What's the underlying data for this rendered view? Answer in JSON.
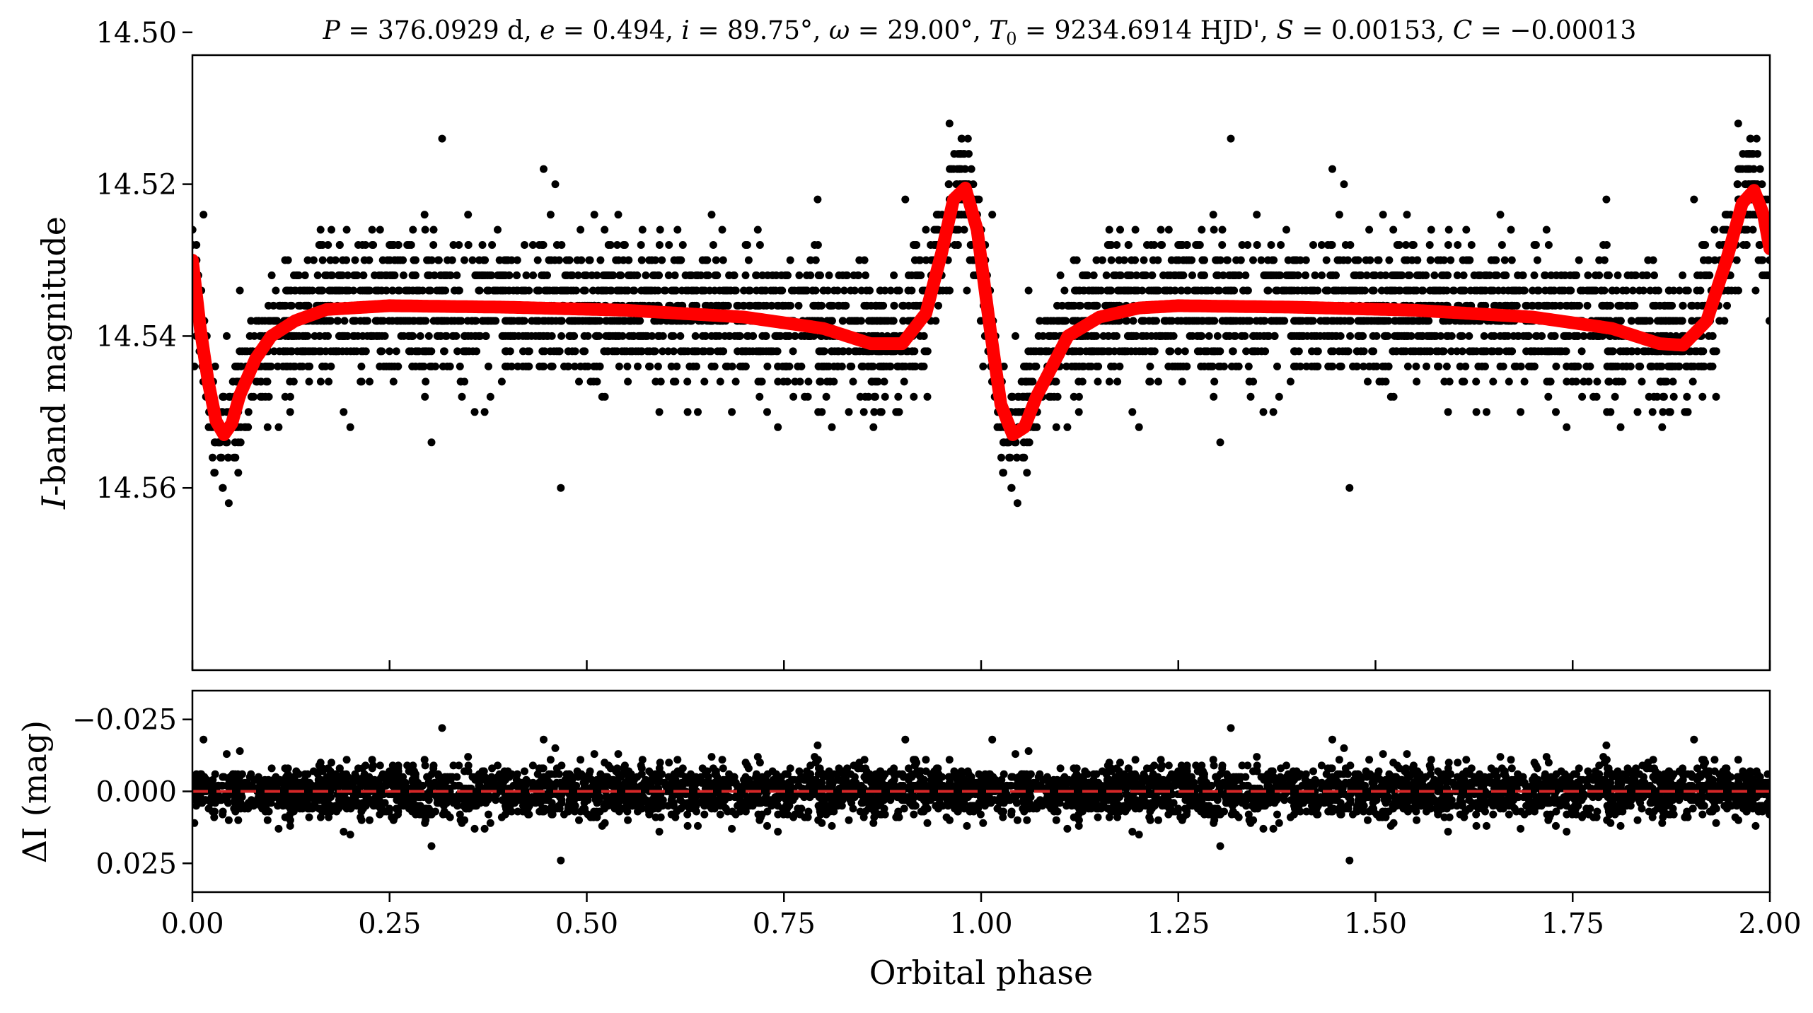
{
  "chart_data": [
    {
      "type": "scatter",
      "panel": "top",
      "title": "P = 376.0929 d, e = 0.494, i = 89.75°, ω = 29.00°, T0 = 9234.6914 HJD', S = 0.00153, C = −0.00013",
      "title_parts": {
        "P_sym": "P",
        "P_val": " = 376.0929 d, ",
        "e_sym": "e",
        "e_val": " = 0.494, ",
        "i_sym": "i",
        "i_val": " = 89.75°, ",
        "w_sym": "ω",
        "w_val": " = 29.00°, ",
        "T_sym": "T",
        "T_sub": "0",
        "T_val": " = 9234.6914 HJD', ",
        "S_sym": "S",
        "S_val": " = 0.00153, ",
        "C_sym": "C",
        "C_val": " = −0.00013"
      },
      "ylabel_italic": "I",
      "ylabel_rest": "-band magnitude",
      "xlim": [
        0.0,
        2.0
      ],
      "ylim": [
        14.584,
        14.503
      ],
      "y_inverted": true,
      "yticks": [
        14.5,
        14.52,
        14.54,
        14.56
      ],
      "ytick_labels": [
        "14.50",
        "14.52",
        "14.54",
        "14.56"
      ],
      "baseline_mag": 14.5385,
      "observations": {
        "color": "#000000",
        "phase_range": [
          0.0,
          2.0
        ],
        "approx_points_per_cycle": 2300
      },
      "model_curve": {
        "color": "#ff0000",
        "points": [
          [
            0.0,
            14.53
          ],
          [
            0.01,
            14.539
          ],
          [
            0.02,
            14.546
          ],
          [
            0.03,
            14.5512
          ],
          [
            0.04,
            14.553
          ],
          [
            0.05,
            14.5515
          ],
          [
            0.06,
            14.5478
          ],
          [
            0.08,
            14.543
          ],
          [
            0.1,
            14.54
          ],
          [
            0.13,
            14.538
          ],
          [
            0.17,
            14.5365
          ],
          [
            0.25,
            14.536
          ],
          [
            0.4,
            14.5362
          ],
          [
            0.55,
            14.5366
          ],
          [
            0.7,
            14.5375
          ],
          [
            0.8,
            14.539
          ],
          [
            0.86,
            14.541
          ],
          [
            0.9,
            14.541
          ],
          [
            0.93,
            14.537
          ],
          [
            0.95,
            14.529
          ],
          [
            0.965,
            14.522
          ],
          [
            0.98,
            14.5205
          ],
          [
            0.995,
            14.526
          ],
          [
            1.01,
            14.538
          ],
          [
            1.025,
            14.549
          ],
          [
            1.04,
            14.553
          ],
          [
            1.055,
            14.552
          ],
          [
            1.07,
            14.548
          ],
          [
            1.09,
            14.544
          ],
          [
            1.11,
            14.54
          ],
          [
            1.15,
            14.5375
          ],
          [
            1.2,
            14.5363
          ],
          [
            1.25,
            14.536
          ],
          [
            1.4,
            14.5362
          ],
          [
            1.55,
            14.5366
          ],
          [
            1.7,
            14.5375
          ],
          [
            1.8,
            14.539
          ],
          [
            1.86,
            14.541
          ],
          [
            1.89,
            14.5412
          ],
          [
            1.92,
            14.538
          ],
          [
            1.945,
            14.53
          ],
          [
            1.965,
            14.5225
          ],
          [
            1.98,
            14.5208
          ],
          [
            1.992,
            14.524
          ],
          [
            2.0,
            14.5285
          ]
        ]
      }
    },
    {
      "type": "scatter",
      "panel": "bottom",
      "xlabel": "Orbital phase",
      "ylabel_sym": "ΔI",
      "ylabel_rest": " (mag)",
      "xlim": [
        0.0,
        2.0
      ],
      "ylim": [
        0.035,
        -0.035
      ],
      "y_inverted": true,
      "xticks": [
        0.0,
        0.25,
        0.5,
        0.75,
        1.0,
        1.25,
        1.5,
        1.75,
        2.0
      ],
      "xtick_labels": [
        "0.00",
        "0.25",
        "0.50",
        "0.75",
        "1.00",
        "1.25",
        "1.50",
        "1.75",
        "2.00"
      ],
      "yticks": [
        -0.025,
        0.0,
        0.025
      ],
      "ytick_labels": [
        "−0.025",
        "0.000",
        "0.025"
      ],
      "residuals": {
        "color": "#000000",
        "approx_points_per_cycle": 2300
      },
      "zero_line": {
        "y": 0.0,
        "color": "#d62728",
        "style": "dashed"
      }
    }
  ]
}
